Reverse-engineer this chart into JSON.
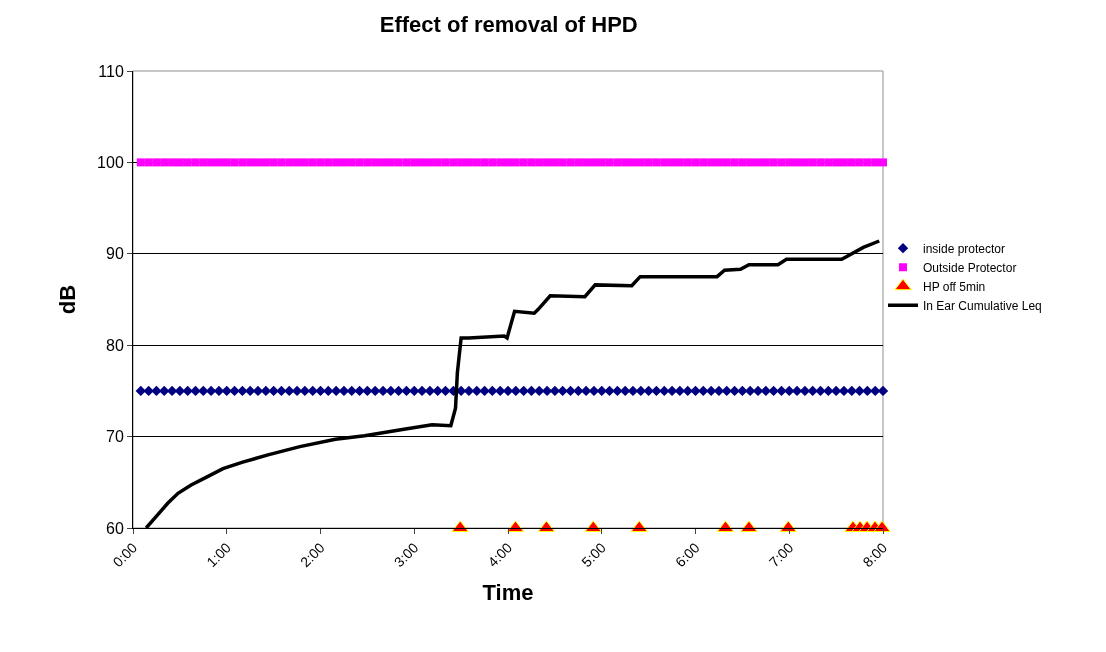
{
  "chart_data": {
    "type": "line",
    "title": "Effect of removal of HPD",
    "xlabel": "Time",
    "ylabel": "dB",
    "xlim": [
      0,
      8
    ],
    "xticks": [
      {
        "value": 0,
        "label": "0:00"
      },
      {
        "value": 1,
        "label": "1:00"
      },
      {
        "value": 2,
        "label": "2:00"
      },
      {
        "value": 3,
        "label": "3:00"
      },
      {
        "value": 4,
        "label": "4:00"
      },
      {
        "value": 5,
        "label": "5:00"
      },
      {
        "value": 6,
        "label": "6:00"
      },
      {
        "value": 7,
        "label": "7:00"
      },
      {
        "value": 8,
        "label": "8:00"
      }
    ],
    "ylim": [
      60,
      110
    ],
    "yticks": [
      60,
      70,
      80,
      90,
      100,
      110
    ],
    "grid": "y",
    "legend": "right",
    "series": [
      {
        "name": "inside protector",
        "type": "scatter",
        "marker": "diamond",
        "color": "#000080",
        "x": [
          0.083,
          0.167,
          0.25,
          0.333,
          0.417,
          0.5,
          0.583,
          0.667,
          0.75,
          0.833,
          0.917,
          1,
          1.083,
          1.167,
          1.25,
          1.333,
          1.417,
          1.5,
          1.583,
          1.667,
          1.75,
          1.833,
          1.917,
          2,
          2.083,
          2.167,
          2.25,
          2.333,
          2.417,
          2.5,
          2.583,
          2.667,
          2.75,
          2.833,
          2.917,
          3,
          3.083,
          3.167,
          3.25,
          3.333,
          3.417,
          3.5,
          3.583,
          3.667,
          3.75,
          3.833,
          3.917,
          4,
          4.083,
          4.167,
          4.25,
          4.333,
          4.417,
          4.5,
          4.583,
          4.667,
          4.75,
          4.833,
          4.917,
          5,
          5.083,
          5.167,
          5.25,
          5.333,
          5.417,
          5.5,
          5.583,
          5.667,
          5.75,
          5.833,
          5.917,
          6,
          6.083,
          6.167,
          6.25,
          6.333,
          6.417,
          6.5,
          6.583,
          6.667,
          6.75,
          6.833,
          6.917,
          7,
          7.083,
          7.167,
          7.25,
          7.333,
          7.417,
          7.5,
          7.583,
          7.667,
          7.75,
          7.833,
          7.917,
          8
        ],
        "values": [
          75,
          75,
          75,
          75,
          75,
          75,
          75,
          75,
          75,
          75,
          75,
          75,
          75,
          75,
          75,
          75,
          75,
          75,
          75,
          75,
          75,
          75,
          75,
          75,
          75,
          75,
          75,
          75,
          75,
          75,
          75,
          75,
          75,
          75,
          75,
          75,
          75,
          75,
          75,
          75,
          75,
          75,
          75,
          75,
          75,
          75,
          75,
          75,
          75,
          75,
          75,
          75,
          75,
          75,
          75,
          75,
          75,
          75,
          75,
          75,
          75,
          75,
          75,
          75,
          75,
          75,
          75,
          75,
          75,
          75,
          75,
          75,
          75,
          75,
          75,
          75,
          75,
          75,
          75,
          75,
          75,
          75,
          75,
          75,
          75,
          75,
          75,
          75,
          75,
          75,
          75,
          75,
          75,
          75,
          75,
          75
        ]
      },
      {
        "name": "Outside Protector",
        "type": "scatter",
        "marker": "square",
        "color": "#ff00ff",
        "x": [
          0.083,
          0.167,
          0.25,
          0.333,
          0.417,
          0.5,
          0.583,
          0.667,
          0.75,
          0.833,
          0.917,
          1,
          1.083,
          1.167,
          1.25,
          1.333,
          1.417,
          1.5,
          1.583,
          1.667,
          1.75,
          1.833,
          1.917,
          2,
          2.083,
          2.167,
          2.25,
          2.333,
          2.417,
          2.5,
          2.583,
          2.667,
          2.75,
          2.833,
          2.917,
          3,
          3.083,
          3.167,
          3.25,
          3.333,
          3.417,
          3.5,
          3.583,
          3.667,
          3.75,
          3.833,
          3.917,
          4,
          4.083,
          4.167,
          4.25,
          4.333,
          4.417,
          4.5,
          4.583,
          4.667,
          4.75,
          4.833,
          4.917,
          5,
          5.083,
          5.167,
          5.25,
          5.333,
          5.417,
          5.5,
          5.583,
          5.667,
          5.75,
          5.833,
          5.917,
          6,
          6.083,
          6.167,
          6.25,
          6.333,
          6.417,
          6.5,
          6.583,
          6.667,
          6.75,
          6.833,
          6.917,
          7,
          7.083,
          7.167,
          7.25,
          7.333,
          7.417,
          7.5,
          7.583,
          7.667,
          7.75,
          7.833,
          7.917,
          8
        ],
        "values": [
          100,
          100,
          100,
          100,
          100,
          100,
          100,
          100,
          100,
          100,
          100,
          100,
          100,
          100,
          100,
          100,
          100,
          100,
          100,
          100,
          100,
          100,
          100,
          100,
          100,
          100,
          100,
          100,
          100,
          100,
          100,
          100,
          100,
          100,
          100,
          100,
          100,
          100,
          100,
          100,
          100,
          100,
          100,
          100,
          100,
          100,
          100,
          100,
          100,
          100,
          100,
          100,
          100,
          100,
          100,
          100,
          100,
          100,
          100,
          100,
          100,
          100,
          100,
          100,
          100,
          100,
          100,
          100,
          100,
          100,
          100,
          100,
          100,
          100,
          100,
          100,
          100,
          100,
          100,
          100,
          100,
          100,
          100,
          100,
          100,
          100,
          100,
          100,
          100,
          100,
          100,
          100,
          100,
          100,
          100,
          100
        ]
      },
      {
        "name": "HP off 5min",
        "type": "scatter",
        "marker": "triangle",
        "color": "#ff0000",
        "x": [
          3.49,
          4.08,
          4.41,
          4.91,
          5.4,
          6.32,
          6.57,
          6.99,
          7.68,
          7.755,
          7.83,
          7.915,
          7.99
        ],
        "values": [
          60,
          60,
          60,
          60,
          60,
          60,
          60,
          60,
          60,
          60,
          60,
          60,
          60
        ]
      },
      {
        "name": "In Ear Cumulative Leq",
        "marker": "none",
        "line_style": "solid",
        "color": "#000000",
        "x": [
          0.14,
          0.26,
          0.37,
          0.48,
          0.62,
          0.79,
          0.96,
          1.17,
          1.44,
          1.78,
          2.16,
          2.47,
          2.89,
          3.19,
          3.39,
          3.44,
          3.46,
          3.5,
          3.58,
          3.96,
          3.99,
          4.07,
          4.28,
          4.32,
          4.45,
          4.82,
          4.93,
          5.32,
          5.41,
          6.23,
          6.31,
          6.48,
          6.57,
          6.88,
          6.97,
          7.56,
          7.79,
          7.96
        ],
        "values": [
          60,
          61.4,
          62.7,
          63.8,
          64.7,
          65.6,
          66.5,
          67.2,
          68.0,
          68.9,
          69.7,
          70.1,
          70.8,
          71.3,
          71.2,
          73.1,
          77.0,
          80.8,
          80.8,
          81.0,
          80.8,
          83.7,
          83.5,
          83.9,
          85.4,
          85.3,
          86.6,
          86.5,
          87.5,
          87.5,
          88.2,
          88.3,
          88.8,
          88.8,
          89.4,
          89.4,
          90.7,
          91.4
        ]
      }
    ]
  }
}
